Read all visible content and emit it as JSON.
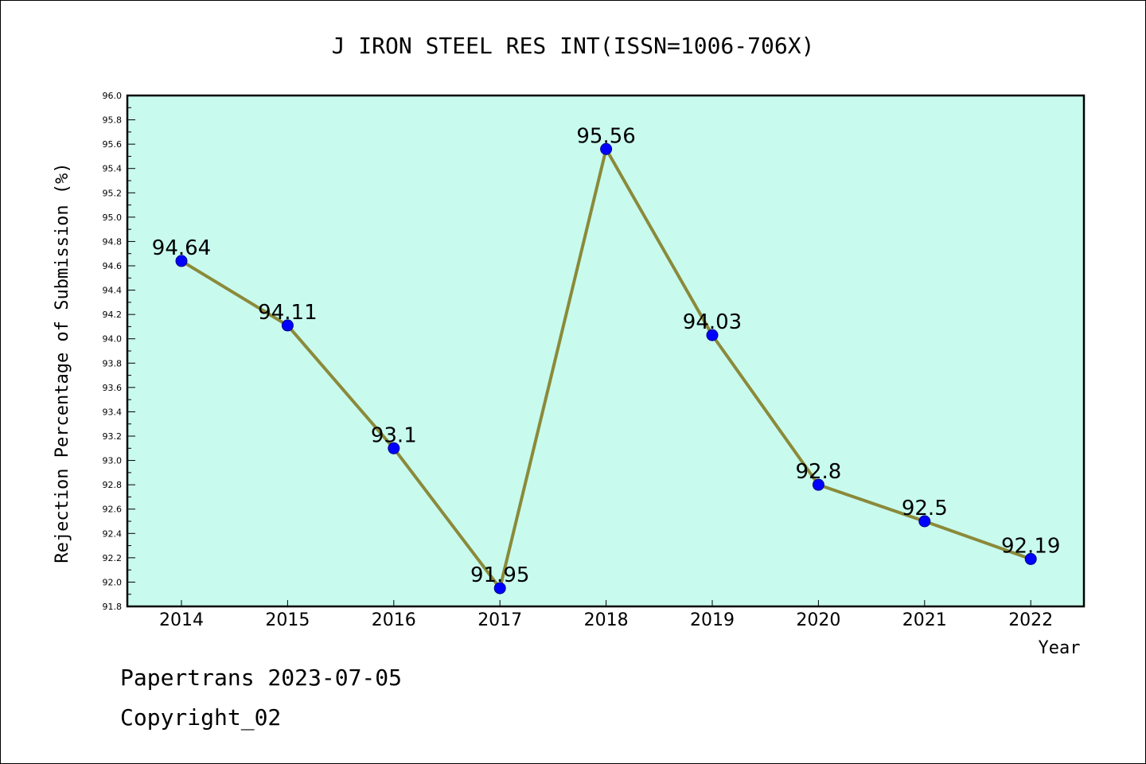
{
  "chart_data": {
    "type": "line",
    "title": "J IRON STEEL RES INT(ISSN=1006-706X)",
    "xlabel": "Year",
    "ylabel": "Rejection Percentage of Submission (%)",
    "categories": [
      "2014",
      "2015",
      "2016",
      "2017",
      "2018",
      "2019",
      "2020",
      "2021",
      "2022"
    ],
    "series": [
      {
        "values": [
          94.64,
          94.11,
          93.1,
          91.95,
          95.56,
          94.03,
          92.8,
          92.5,
          92.19
        ],
        "data_labels": [
          "94.64",
          "94.11",
          "93.1",
          "91.95",
          "95.56",
          "94.03",
          "92.8",
          "92.5",
          "92.19"
        ]
      }
    ],
    "ylim": [
      91.8,
      96.0
    ],
    "y_ticks": [
      "91.8",
      "92.0",
      "92.2",
      "92.4",
      "92.6",
      "92.8",
      "93.0",
      "93.2",
      "93.4",
      "93.6",
      "93.8",
      "94.0",
      "94.2",
      "94.4",
      "94.6",
      "94.8",
      "95.0",
      "95.2",
      "95.4",
      "95.6",
      "95.8",
      "96.0"
    ],
    "grid": false,
    "legend": "none",
    "colors": {
      "plot_background": "#c8fbee",
      "line": "#8b8a3a",
      "marker": "#0000ff"
    }
  },
  "footer": {
    "line1": "Papertrans 2023-07-05",
    "line2": "Copyright_02"
  }
}
